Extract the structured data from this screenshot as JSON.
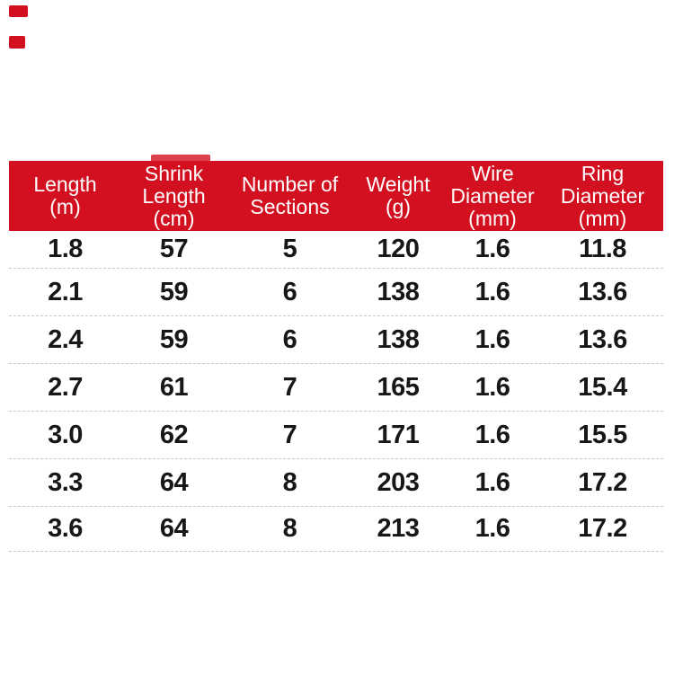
{
  "colors": {
    "header_bg": "#d2101f",
    "header_text": "#ffffff",
    "body_text": "#171717",
    "row_divider": "#c8c8c8",
    "page_bg": "#ffffff",
    "corner_marks": "#d2101f"
  },
  "table": {
    "columns": [
      {
        "label_lines": [
          "Length",
          "(m)"
        ]
      },
      {
        "label_lines": [
          "Shrink",
          "Length",
          "(cm)"
        ]
      },
      {
        "label_lines": [
          "Number of",
          "Sections"
        ]
      },
      {
        "label_lines": [
          "Weight",
          "(g)"
        ]
      },
      {
        "label_lines": [
          "Wire",
          "Diameter",
          "(mm)"
        ]
      },
      {
        "label_lines": [
          "Ring",
          "Diameter",
          "(mm)"
        ]
      }
    ],
    "rows": [
      [
        "1.8",
        "57",
        "5",
        "120",
        "1.6",
        "11.8"
      ],
      [
        "2.1",
        "59",
        "6",
        "138",
        "1.6",
        "13.6"
      ],
      [
        "2.4",
        "59",
        "6",
        "138",
        "1.6",
        "13.6"
      ],
      [
        "2.7",
        "61",
        "7",
        "165",
        "1.6",
        "15.4"
      ],
      [
        "3.0",
        "62",
        "7",
        "171",
        "1.6",
        "15.5"
      ],
      [
        "3.3",
        "64",
        "8",
        "203",
        "1.6",
        "17.2"
      ],
      [
        "3.6",
        "64",
        "8",
        "213",
        "1.6",
        "17.2"
      ]
    ]
  }
}
